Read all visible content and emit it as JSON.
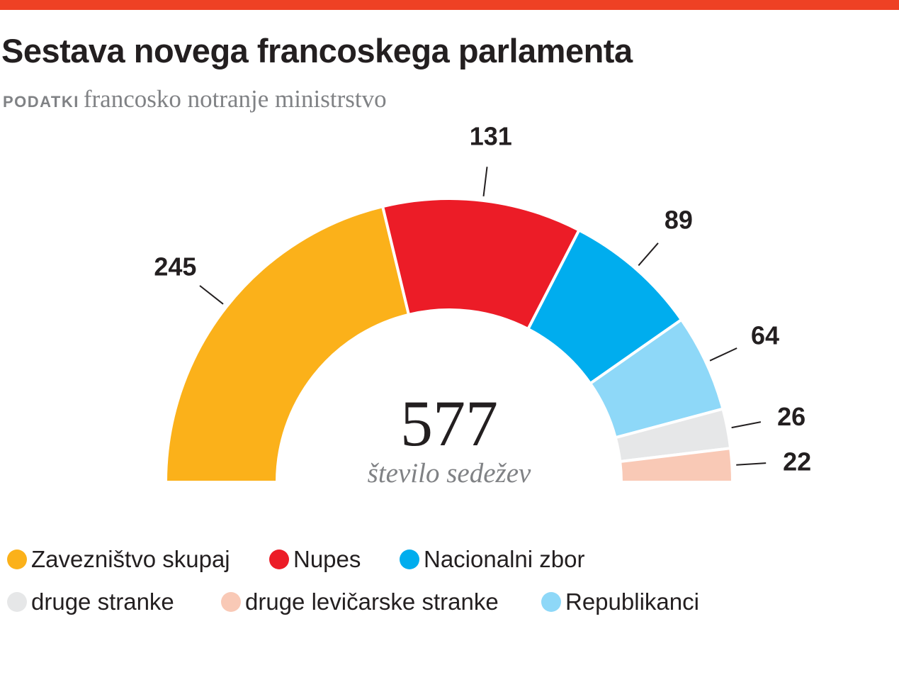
{
  "header": {
    "title": "Sestava novega francoskega parlamenta",
    "source_label": "PODATKI",
    "source_text": "francosko notranje ministrstvo",
    "accent_color": "#ee4124"
  },
  "chart_data": {
    "type": "pie",
    "variant": "half-donut",
    "title": "Sestava novega francoskega parlamenta",
    "total": 577,
    "total_label": "število sedežev",
    "categories": [
      "Zavezništvo skupaj",
      "Nupes",
      "Nacionalni zbor",
      "Republikanci",
      "druge stranke",
      "druge levičarske stranke"
    ],
    "values": [
      245,
      131,
      89,
      64,
      26,
      22
    ],
    "colors": [
      "#fbb11a",
      "#ec1c27",
      "#00adee",
      "#8ed8f8",
      "#e6e7e8",
      "#f9c9b6"
    ],
    "data_labels": [
      "245",
      "131",
      "89",
      "64",
      "26",
      "22"
    ],
    "order": "left-to-right",
    "legend_position": "bottom"
  },
  "center": {
    "total": "577",
    "label": "število sedežev"
  },
  "legend": {
    "rows": [
      [
        {
          "label": "Zavezništvo skupaj",
          "color": "#fbb11a"
        },
        {
          "label": "Nupes",
          "color": "#ec1c27"
        },
        {
          "label": "Nacionalni zbor",
          "color": "#00adee"
        }
      ],
      [
        {
          "label": "druge stranke",
          "color": "#e6e7e8"
        },
        {
          "label": "druge levičarske stranke",
          "color": "#f9c9b6"
        },
        {
          "label": "Republikanci",
          "color": "#8ed8f8"
        }
      ]
    ]
  }
}
